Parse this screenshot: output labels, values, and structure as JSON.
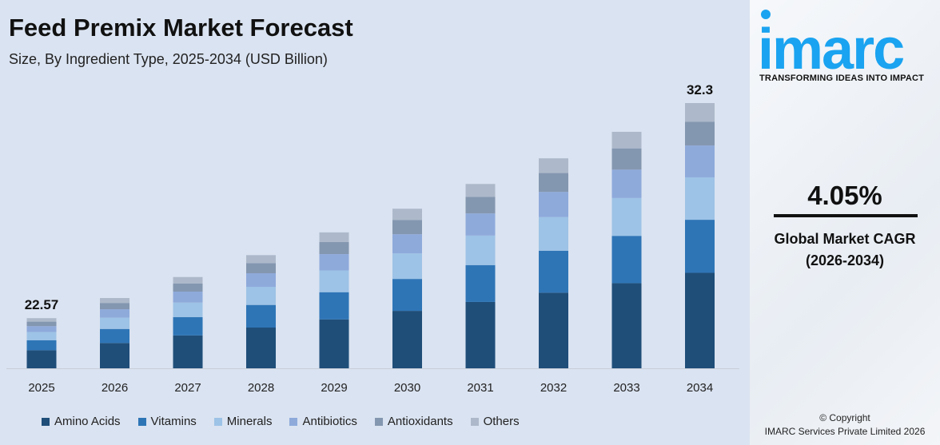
{
  "header": {
    "title": "Feed Premix Market Forecast",
    "subtitle": "Size, By Ingredient Type, 2025-2034 (USD Billion)"
  },
  "brand": {
    "logo_text": "imarc",
    "tagline": "TRANSFORMING IDEAS INTO IMPACT",
    "accent": "#1aa3f0"
  },
  "cagr": {
    "value": "4.05%",
    "label": "Global Market CAGR",
    "period": "(2026-2034)"
  },
  "copyright": {
    "line1": "© Copyright",
    "line2": "IMARC Services Private Limited 2026"
  },
  "chart_data": {
    "type": "bar",
    "stacked": true,
    "title": "Feed Premix Market Forecast",
    "subtitle": "Size, By Ingredient Type, 2025-2034 (USD Billion)",
    "categories": [
      "2025",
      "2026",
      "2027",
      "2028",
      "2029",
      "2030",
      "2031",
      "2032",
      "2033",
      "2034"
    ],
    "totals": [
      22.57,
      23.48,
      24.43,
      25.42,
      26.45,
      27.52,
      28.64,
      29.8,
      31.0,
      32.3
    ],
    "total_labels": {
      "2025": "22.57",
      "2034": "32.3"
    },
    "series": [
      {
        "name": "Amino Acids",
        "color": "#1f4e79",
        "share": 0.36
      },
      {
        "name": "Vitamins",
        "color": "#2e75b6",
        "share": 0.2
      },
      {
        "name": "Minerals",
        "color": "#9dc3e6",
        "share": 0.16
      },
      {
        "name": "Antibiotics",
        "color": "#8eaadb",
        "share": 0.12
      },
      {
        "name": "Antioxidants",
        "color": "#8497b0",
        "share": 0.09
      },
      {
        "name": "Others",
        "color": "#adb9ca",
        "share": 0.07
      }
    ],
    "ylim": [
      20.3,
      32.3
    ],
    "grid": false,
    "legend": "bottom",
    "y_axis_visible": false
  }
}
